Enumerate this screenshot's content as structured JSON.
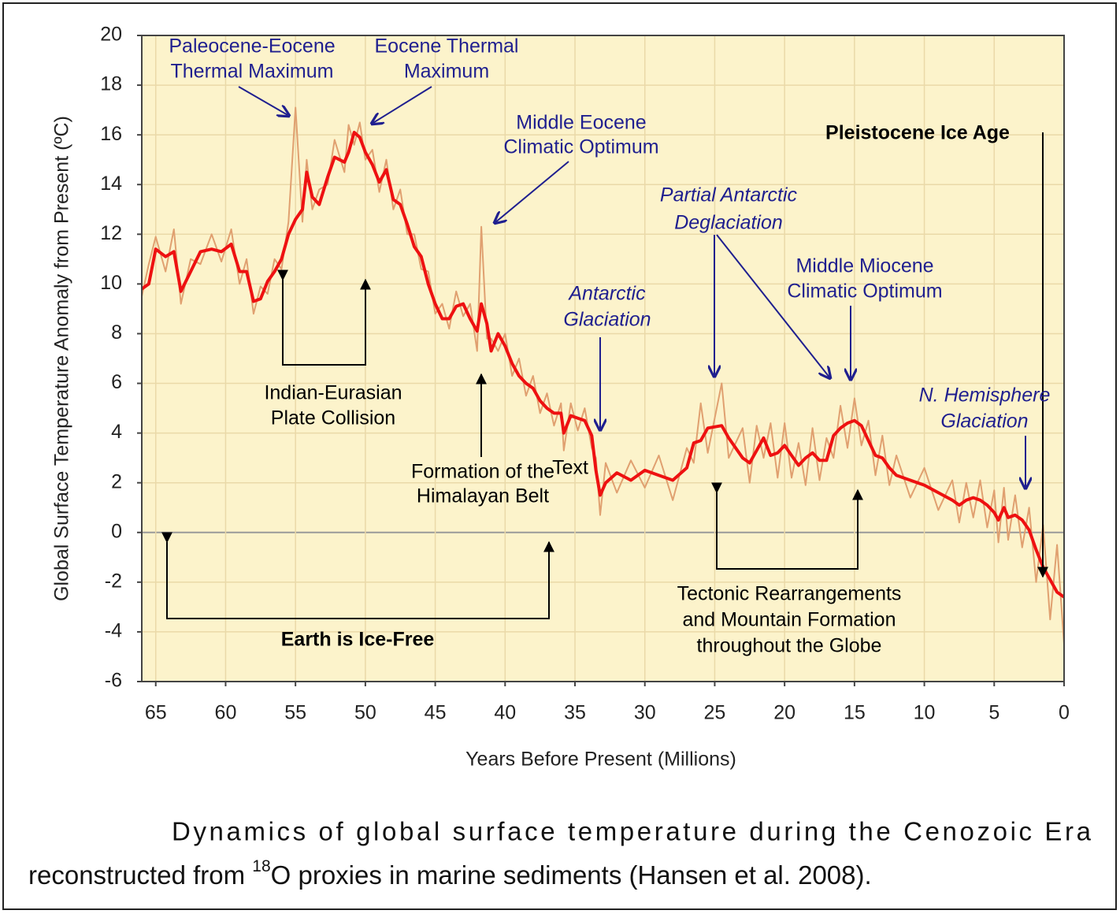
{
  "chart_data": {
    "type": "line",
    "xlabel": "Years Before Present (Millions)",
    "ylabel": "Global Surface Temperature Anomaly from Present (ºC)",
    "xlim": [
      66,
      0
    ],
    "ylim": [
      -6,
      20
    ],
    "xticks": [
      65,
      60,
      55,
      50,
      45,
      40,
      35,
      30,
      25,
      20,
      15,
      10,
      5,
      0
    ],
    "yticks": [
      -6,
      -4,
      -2,
      0,
      2,
      4,
      6,
      8,
      10,
      12,
      14,
      16,
      18,
      20
    ],
    "grid": true,
    "x": [
      66,
      65.5,
      65,
      64.3,
      63.7,
      63.2,
      62.5,
      61.8,
      61,
      60.3,
      59.6,
      59,
      58.5,
      58,
      57.5,
      57,
      56.5,
      56,
      55.5,
      55,
      54.5,
      54.2,
      53.8,
      53.3,
      52.7,
      52.2,
      51.5,
      51.2,
      50.8,
      50.4,
      50,
      49.5,
      49,
      48.5,
      48,
      47.5,
      47,
      46.5,
      46,
      45.5,
      45,
      44.5,
      44,
      43.5,
      43,
      42.5,
      42,
      41.7,
      41.3,
      41,
      40.5,
      40,
      39.5,
      39,
      38.5,
      38,
      37.5,
      37,
      36.5,
      36,
      35.8,
      35.3,
      34.8,
      34.3,
      33.8,
      33.5,
      33.2,
      32.8,
      32,
      31,
      30,
      29,
      28,
      27,
      26.5,
      26,
      25.5,
      24.5,
      24,
      23,
      22.5,
      22,
      21.5,
      21,
      20.5,
      20,
      19.5,
      19,
      18.5,
      18,
      17.5,
      17,
      16.5,
      16,
      15.5,
      15,
      14.5,
      14,
      13.5,
      13,
      12.5,
      12,
      11,
      10,
      9,
      8,
      7.5,
      7,
      6.5,
      6,
      5.5,
      5,
      4.7,
      4.3,
      4,
      3.5,
      3,
      2.5,
      2,
      1.5,
      1,
      0.5,
      0
    ],
    "series": [
      {
        "color": "#e0a070",
        "values": [
          9.5,
          10.8,
          11.9,
          10.5,
          12.2,
          9.2,
          11,
          10.8,
          12,
          10.9,
          12.2,
          10,
          11,
          8.8,
          9.9,
          9.6,
          11,
          10.6,
          12.5,
          17.1,
          12.5,
          15,
          13,
          13.8,
          14,
          15.8,
          14.5,
          16.4,
          15.6,
          16.5,
          15,
          15.4,
          13.7,
          15,
          13,
          13.8,
          12,
          12,
          10.6,
          10.5,
          8.8,
          9.2,
          8.2,
          9.7,
          8.7,
          9.2,
          7.3,
          12.3,
          7.8,
          7.8,
          7.3,
          8,
          6.3,
          7,
          5.5,
          6.3,
          4.8,
          5.6,
          4.3,
          5.2,
          3.3,
          5.2,
          4.1,
          5,
          3.4,
          3,
          0.7,
          2.8,
          1.6,
          2.9,
          1.8,
          3.1,
          1.3,
          3.4,
          2.8,
          5.2,
          3.2,
          6,
          3,
          4.2,
          2,
          4.3,
          3,
          4.4,
          2.2,
          4.4,
          2.2,
          3.6,
          1.9,
          4.2,
          2.1,
          3.8,
          3,
          5.1,
          3.4,
          5.4,
          3.5,
          4.5,
          2.3,
          3.9,
          1.9,
          3.1,
          1.4,
          2.6,
          0.9,
          2.1,
          0.4,
          2,
          0.6,
          2.1,
          0.2,
          1.7,
          -0.4,
          1.8,
          -0.3,
          1.5,
          -0.6,
          1,
          -2,
          0.3,
          -3.5,
          -0.5,
          -4.5
        ]
      },
      {
        "color": "#ee1111",
        "values": [
          9.8,
          10,
          11.4,
          11.1,
          11.3,
          9.7,
          10.5,
          11.3,
          11.4,
          11.3,
          11.6,
          10.5,
          10.5,
          9.3,
          9.4,
          10.1,
          10.5,
          11,
          12,
          12.6,
          13,
          14.5,
          13.5,
          13.2,
          14.3,
          15.1,
          14.9,
          15.3,
          16.1,
          15.9,
          15.3,
          14.8,
          14.1,
          14.6,
          13.4,
          13.2,
          12.4,
          11.5,
          11.1,
          10,
          9.2,
          8.6,
          8.6,
          9.1,
          9.2,
          8.6,
          8.1,
          9.2,
          8.4,
          7.3,
          8,
          7.5,
          6.8,
          6.3,
          6,
          5.8,
          5.3,
          5,
          4.8,
          4.8,
          4,
          4.7,
          4.6,
          4.5,
          3.9,
          2.5,
          1.5,
          2,
          2.4,
          2.1,
          2.5,
          2.3,
          2.1,
          2.6,
          3.6,
          3.7,
          4.2,
          4.3,
          3.8,
          3,
          2.8,
          3.3,
          3.8,
          3.1,
          3.2,
          3.5,
          3.1,
          2.7,
          3,
          3.2,
          2.9,
          2.9,
          3.9,
          4.2,
          4.4,
          4.5,
          4.3,
          3.7,
          3.1,
          3,
          2.6,
          2.3,
          2.1,
          1.9,
          1.6,
          1.3,
          1.1,
          1.3,
          1.4,
          1.3,
          1.1,
          0.8,
          0.5,
          1,
          0.6,
          0.7,
          0.5,
          0.1,
          -0.7,
          -1.4,
          -1.9,
          -2.4,
          -2.6
        ]
      }
    ],
    "annotations": [
      {
        "lines": [
          "Paleocene-Eocene",
          "Thermal Maximum"
        ]
      },
      {
        "lines": [
          "Eocene Thermal",
          "Maximum"
        ]
      },
      {
        "lines": [
          "Middle Eocene",
          "Climatic Optimum"
        ]
      },
      {
        "lines": [
          "Pleistocene Ice Age"
        ]
      },
      {
        "lines": [
          "Partial Antarctic",
          "Deglaciation"
        ]
      },
      {
        "lines": [
          "Middle Miocene",
          "Climatic Optimum"
        ]
      },
      {
        "lines": [
          "Antarctic",
          "Glaciation"
        ]
      },
      {
        "lines": [
          "N. Hemisphere",
          "Glaciation"
        ]
      },
      {
        "lines": [
          "Indian-Eurasian",
          "Plate Collision"
        ]
      },
      {
        "lines": [
          "Formation of the",
          "Himalayan Belt"
        ]
      },
      {
        "lines": [
          "Text"
        ]
      },
      {
        "lines": [
          "Tectonic Rearrangements",
          "and Mountain Formation",
          "throughout the Globe"
        ]
      },
      {
        "lines": [
          "Earth is Ice-Free"
        ]
      }
    ]
  },
  "caption": {
    "line1": "Dynamics of global surface temperature during the Cenozoic Era",
    "line2_start": "reconstructed from ",
    "superscript": "18",
    "line2_end": "O proxies in marine sediments (Hansen et al. 2008)."
  }
}
